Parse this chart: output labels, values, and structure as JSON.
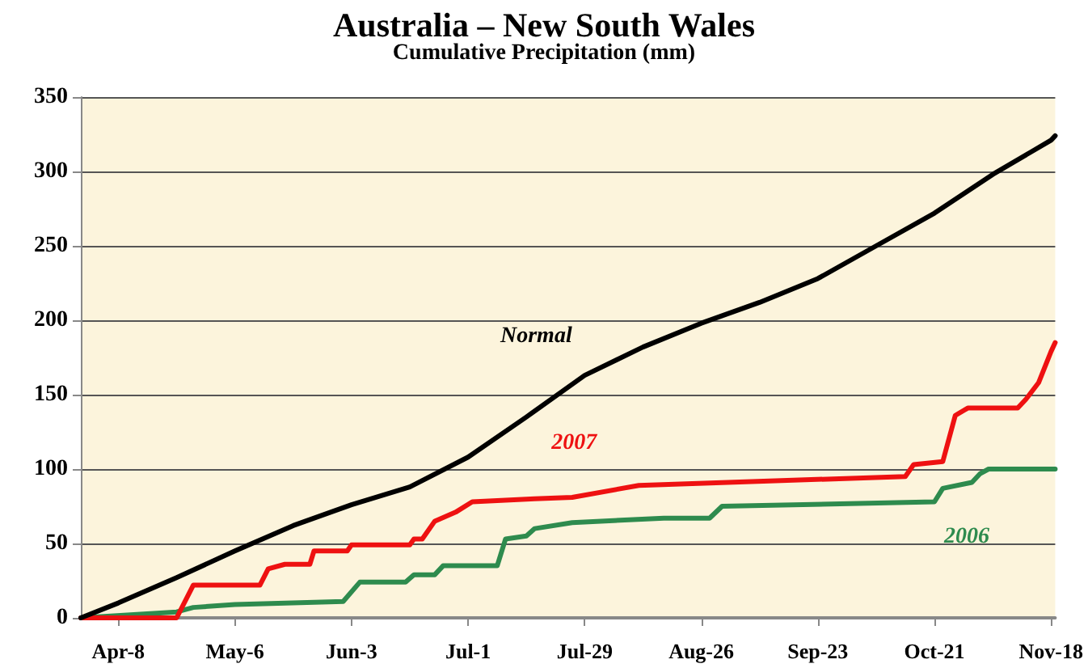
{
  "chart_data": {
    "type": "line",
    "title": "Australia – New South Wales",
    "subtitle": "Cumulative Precipitation (mm)",
    "xlim": [
      "--03-30",
      "--11-19"
    ],
    "xticks": [
      {
        "value": "--04-08",
        "label": "Apr-8"
      },
      {
        "value": "--05-06",
        "label": "May-6"
      },
      {
        "value": "--06-03",
        "label": "Jun-3"
      },
      {
        "value": "--07-01",
        "label": "Jul-1"
      },
      {
        "value": "--07-29",
        "label": "Jul-29"
      },
      {
        "value": "--08-26",
        "label": "Aug-26"
      },
      {
        "value": "--09-23",
        "label": "Sep-23"
      },
      {
        "value": "--10-21",
        "label": "Oct-21"
      },
      {
        "value": "--11-18",
        "label": "Nov-18"
      }
    ],
    "ylim": [
      0,
      350
    ],
    "yticks": [
      0,
      50,
      100,
      150,
      200,
      250,
      300,
      350
    ],
    "grid": "y",
    "legend": false,
    "marker": "none",
    "line_style": "solid",
    "series": [
      {
        "name": "Normal",
        "color": "#000000",
        "x": [
          "--03-30",
          "--04-08",
          "--04-22",
          "--05-06",
          "--05-20",
          "--06-03",
          "--06-17",
          "--07-01",
          "--07-15",
          "--07-29",
          "--08-12",
          "--08-26",
          "--09-09",
          "--09-23",
          "--10-07",
          "--10-21",
          "--11-04",
          "--11-18",
          "--11-19"
        ],
        "values": [
          0,
          10,
          27,
          45,
          62,
          76,
          88,
          108,
          135,
          163,
          182,
          198,
          212,
          228,
          250,
          272,
          298,
          321,
          324
        ]
      },
      {
        "name": "2007",
        "color": "#ee1111",
        "x": [
          "--03-30",
          "--04-22",
          "--04-26",
          "--05-12",
          "--05-14",
          "--05-18",
          "--05-24",
          "--05-25",
          "--06-02",
          "--06-03",
          "--06-17",
          "--06-18",
          "--06-20",
          "--06-23",
          "--06-28",
          "--07-02",
          "--07-17",
          "--07-26",
          "--08-11",
          "--10-14",
          "--10-16",
          "--10-23",
          "--10-26",
          "--10-29",
          "--11-10",
          "--11-12",
          "--11-15",
          "--11-18",
          "--11-19"
        ],
        "values": [
          0,
          0,
          22,
          22,
          33,
          36,
          36,
          45,
          45,
          49,
          49,
          53,
          53,
          65,
          71,
          78,
          80,
          81,
          89,
          95,
          103,
          105,
          136,
          141,
          141,
          147,
          158,
          179,
          185
        ]
      },
      {
        "name": "2006",
        "color": "#2e8b4e",
        "x": [
          "--03-30",
          "--04-22",
          "--04-26",
          "--05-06",
          "--06-01",
          "--06-05",
          "--06-16",
          "--06-18",
          "--06-23",
          "--06-25",
          "--07-08",
          "--07-10",
          "--07-15",
          "--07-17",
          "--07-26",
          "--08-17",
          "--08-28",
          "--08-31",
          "--10-21",
          "--10-23",
          "--10-30",
          "--11-01",
          "--11-03",
          "--11-19"
        ],
        "values": [
          0,
          4,
          7,
          9,
          11,
          24,
          24,
          29,
          29,
          35,
          35,
          53,
          55,
          60,
          64,
          67,
          67,
          75,
          78,
          87,
          91,
          97,
          100,
          100
        ]
      }
    ]
  }
}
